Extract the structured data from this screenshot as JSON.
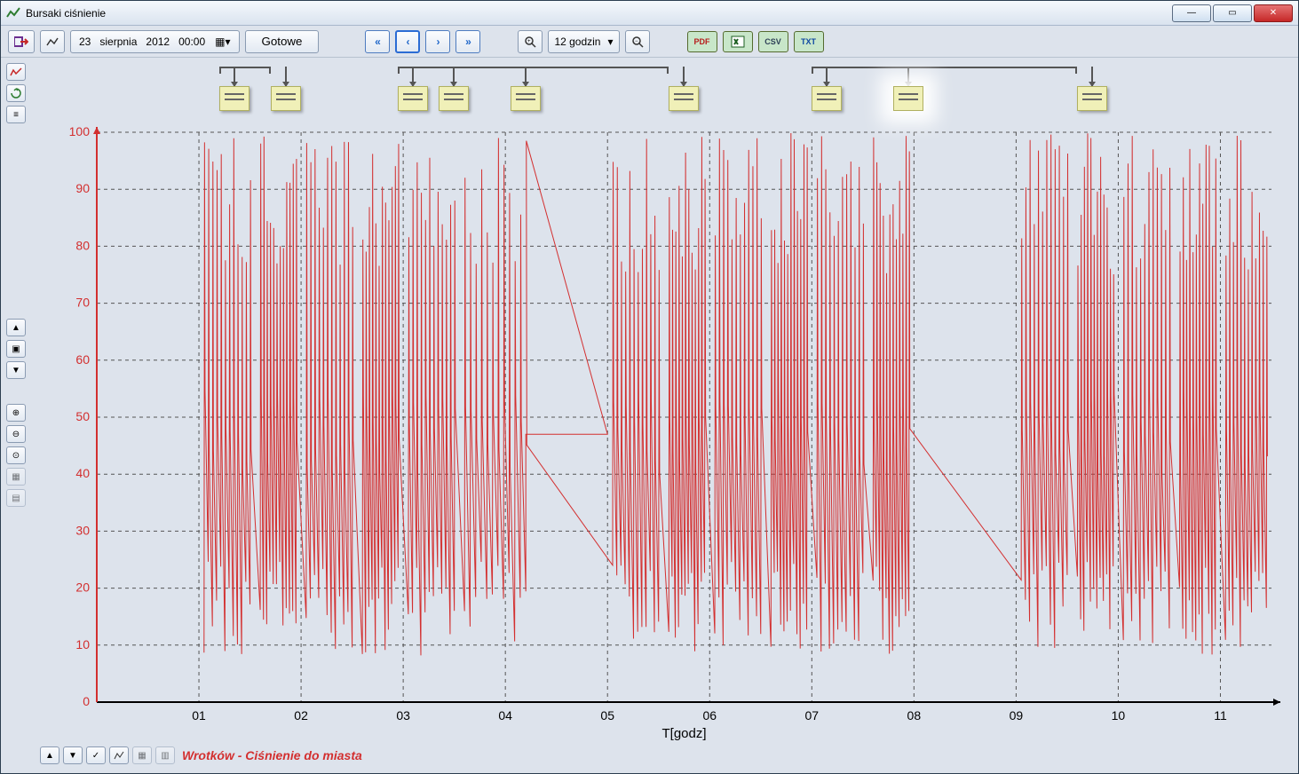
{
  "window": {
    "title": "Bursaki ciśnienie",
    "minimize_label": "—",
    "maximize_label": "▭",
    "close_label": "✕"
  },
  "toolbar": {
    "date": {
      "day": "23",
      "month": "sierpnia",
      "year": "2012",
      "time": "00:00"
    },
    "ready_button": "Gotowe",
    "nav": {
      "first": "«",
      "prev": "‹",
      "next": "›",
      "last": "»"
    },
    "range_label": "12 godzin",
    "export": {
      "pdf": "PDF",
      "xls": "XLS",
      "csv": "CSV",
      "txt": "TXT"
    }
  },
  "chart": {
    "type": "line",
    "x_label": "T[godz]",
    "series_color": "#d32f2f",
    "axis_color": "#d32f2f",
    "grid_color": "#555555",
    "background_color": "#d6dce5",
    "y": {
      "min": 0,
      "max": 100,
      "ticks": [
        0,
        10,
        20,
        30,
        40,
        50,
        60,
        70,
        80,
        90,
        100
      ],
      "tick_color": "#d32f2f"
    },
    "x": {
      "min": 0,
      "max": 11.5,
      "ticks": [
        1,
        2,
        3,
        4,
        5,
        6,
        7,
        8,
        9,
        10,
        11
      ],
      "tick_labels": [
        "01",
        "02",
        "03",
        "04",
        "05",
        "06",
        "07",
        "08",
        "09",
        "10",
        "11"
      ]
    },
    "flat_segment": {
      "from_x": 4.2,
      "to_x": 5.0,
      "y": 47
    },
    "burst_groups": [
      {
        "start": 1.05,
        "end": 1.5
      },
      {
        "start": 1.6,
        "end": 1.95
      },
      {
        "start": 2.05,
        "end": 2.5
      },
      {
        "start": 2.6,
        "end": 2.95
      },
      {
        "start": 3.05,
        "end": 3.5
      },
      {
        "start": 3.6,
        "end": 4.2
      },
      {
        "start": 5.05,
        "end": 5.5
      },
      {
        "start": 5.6,
        "end": 5.95
      },
      {
        "start": 6.05,
        "end": 6.5
      },
      {
        "start": 6.6,
        "end": 6.95
      },
      {
        "start": 7.05,
        "end": 7.5
      },
      {
        "start": 7.6,
        "end": 7.95
      },
      {
        "start": 9.05,
        "end": 9.5
      },
      {
        "start": 9.6,
        "end": 9.95
      },
      {
        "start": 10.05,
        "end": 10.5
      },
      {
        "start": 10.6,
        "end": 10.95
      },
      {
        "start": 11.05,
        "end": 11.45
      }
    ],
    "burst_low_range": [
      8,
      25
    ],
    "burst_high_range": [
      75,
      100
    ]
  },
  "notes": {
    "positions_x": [
      1.2,
      1.7,
      2.95,
      3.35,
      4.05,
      5.6,
      7.0,
      7.8,
      9.6
    ],
    "highlight_index": 7,
    "brackets": [
      {
        "from": 1.2,
        "to": 1.7
      },
      {
        "from": 2.95,
        "to": 5.6
      },
      {
        "from": 7.0,
        "to": 9.6
      }
    ]
  },
  "footer": {
    "series_name": "Wrotków - Ciśnienie do miasta"
  }
}
